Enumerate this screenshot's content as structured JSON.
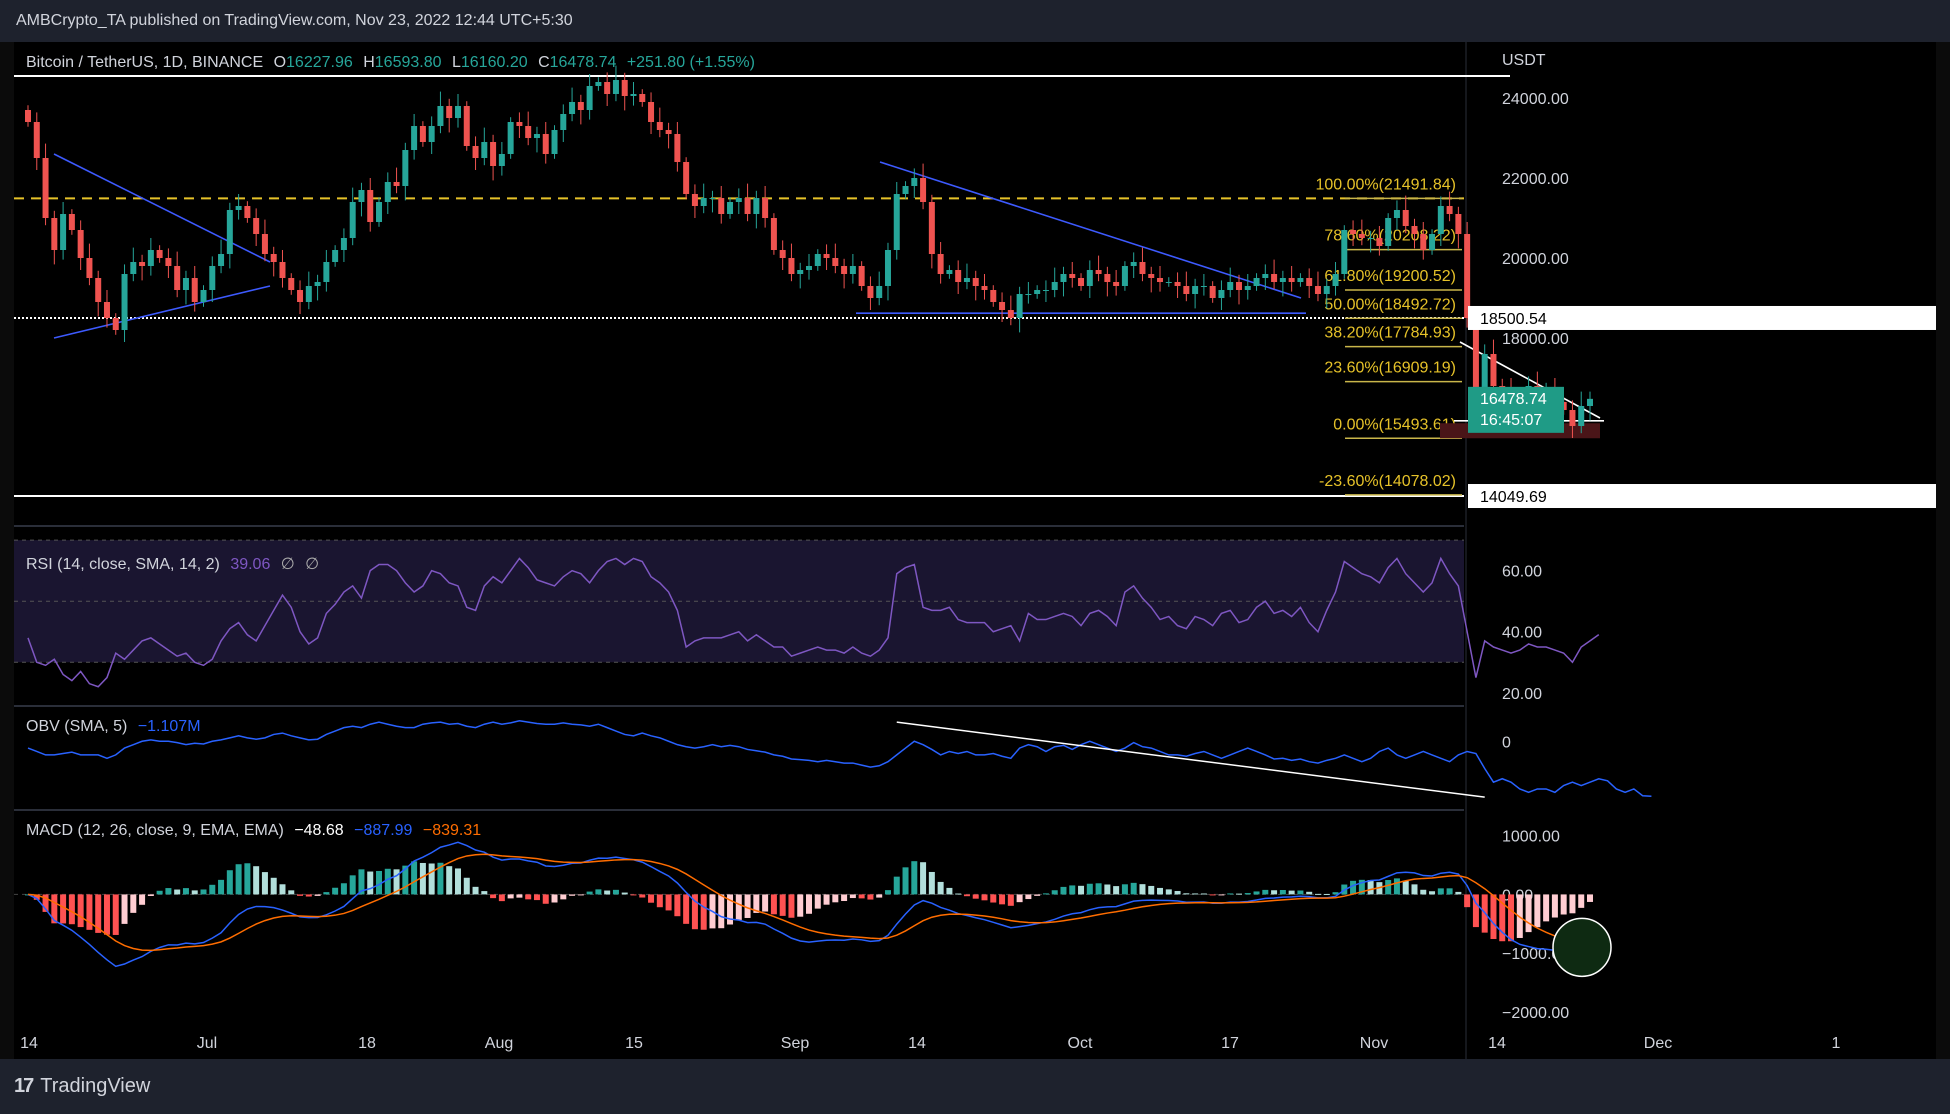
{
  "publisher": "AMBCrypto_TA published on TradingView.com, Nov 23, 2022 12:44 UTC+5:30",
  "brand": "TradingView",
  "colors": {
    "up": "#26a69a",
    "down": "#ef5350",
    "fib": "#c9b64a",
    "white": "#ffffff",
    "blue": "#3d5afe",
    "orange": "#ff6d00",
    "rsi": "#7e57c2",
    "obv": "#2962ff"
  },
  "main_legend": {
    "symbol": "Bitcoin / TetherUS, 1D, BINANCE",
    "o_label": "O",
    "o": "16227.96",
    "h_label": "H",
    "h": "16593.80",
    "l_label": "L",
    "l": "16160.20",
    "c_label": "C",
    "c": "16478.74",
    "change": "+251.80 (+1.55%)"
  },
  "price_axis": {
    "currency": "USDT",
    "ticks": [
      "24000.00",
      "22000.00",
      "20000.00",
      "18000.00"
    ],
    "badge_last": "16478.74",
    "badge_countdown": "16:45:07",
    "badge_18500": "18500.54",
    "badge_14049": "14049.69"
  },
  "rsi_legend": {
    "label": "RSI (14, close, SMA, 14, 2)",
    "value": "39.06",
    "extra1": "∅",
    "extra2": "∅",
    "ticks": [
      "60.00",
      "40.00",
      "20.00"
    ]
  },
  "obv_legend": {
    "label": "OBV (SMA, 5)",
    "value": "−1.107M",
    "ticks": [
      "0"
    ]
  },
  "macd_legend": {
    "label": "MACD (12, 26, close, 9, EMA, EMA)",
    "hist": "−48.68",
    "macd": "−887.99",
    "signal": "−839.31",
    "ticks": [
      "1000.00",
      "0.00",
      "−1000.00",
      "−2000.00"
    ]
  },
  "x_axis": [
    "14",
    "Jul",
    "18",
    "Aug",
    "15",
    "Sep",
    "14",
    "Oct",
    "17",
    "Nov",
    "14",
    "Dec",
    "1"
  ],
  "chart_data": [
    {
      "type": "candlestick",
      "title": "Bitcoin / TetherUS, 1D, BINANCE",
      "ylim": [
        13400,
        25400
      ],
      "last_close": 16478.74,
      "horizontal_levels": [
        24550,
        18500.54,
        14049.69
      ],
      "fib_levels": [
        {
          "label": "100.00%(21491.84)",
          "value": 21491.84
        },
        {
          "label": "78.60%(20208.22)",
          "value": 20208.22
        },
        {
          "label": "61.80%(19200.52)",
          "value": 19200.52
        },
        {
          "label": "50.00%(18492.72)",
          "value": 18492.72
        },
        {
          "label": "38.20%(17784.93)",
          "value": 17784.93
        },
        {
          "label": "23.60%(16909.19)",
          "value": 16909.19
        },
        {
          "label": "0.00%(15493.61)",
          "value": 15493.61
        },
        {
          "label": "-23.60%(14078.02)",
          "value": 14078.02
        }
      ],
      "closes": [
        23400,
        22500,
        21000,
        20200,
        21100,
        20700,
        20000,
        19500,
        18900,
        18500,
        18200,
        19600,
        19900,
        19800,
        20200,
        20000,
        19800,
        19200,
        19500,
        18900,
        19200,
        19800,
        20100,
        21200,
        21300,
        21000,
        20600,
        20100,
        19900,
        19500,
        19200,
        18900,
        19300,
        19400,
        19900,
        20200,
        20500,
        21400,
        21700,
        20900,
        21400,
        21900,
        21800,
        22700,
        23300,
        22900,
        23300,
        23800,
        23500,
        23800,
        22800,
        22500,
        22900,
        22300,
        22600,
        23400,
        23300,
        23000,
        23100,
        22600,
        23200,
        23600,
        23900,
        23700,
        24300,
        24400,
        24100,
        24450,
        24050,
        24100,
        23900,
        23400,
        23200,
        23100,
        22400,
        21600,
        21300,
        21500,
        21500,
        21100,
        21400,
        21500,
        21100,
        21500,
        21000,
        20200,
        20000,
        19600,
        19700,
        19800,
        20100,
        20000,
        19800,
        19600,
        19800,
        19300,
        19000,
        19300,
        20200,
        21600,
        21800,
        22000,
        21400,
        20100,
        19600,
        19700,
        19400,
        19500,
        19300,
        19200,
        18900,
        18700,
        18500,
        19100,
        19100,
        19200,
        19200,
        19400,
        19600,
        19500,
        19300,
        19700,
        19600,
        19400,
        19300,
        19800,
        19900,
        19600,
        19500,
        19400,
        19400,
        19300,
        19100,
        19300,
        19300,
        19000,
        19200,
        19400,
        19200,
        19300,
        19500,
        19600,
        19400,
        19500,
        19400,
        19500,
        19300,
        19100,
        19300,
        19600,
        20700,
        20600,
        20500,
        20500,
        20300,
        21000,
        21200,
        20800,
        20600,
        20200,
        20600,
        21300,
        21100,
        20600,
        18500,
        16700,
        17600,
        16800,
        16700,
        16500,
        16600,
        16800,
        16600,
        16700,
        16400,
        16200,
        15800,
        16300,
        16478.74
      ]
    },
    {
      "type": "line",
      "title": "RSI (14, close, SMA, 14, 2)",
      "ylim": [
        17,
        72
      ],
      "levels": [
        70,
        50,
        30
      ],
      "values": [
        38,
        30,
        29,
        31,
        26,
        24,
        27,
        23,
        22,
        25,
        33,
        31,
        34,
        37,
        38,
        36,
        34,
        32,
        33,
        30,
        29,
        31,
        37,
        41,
        43,
        39,
        37,
        42,
        47,
        52,
        48,
        40,
        36,
        38,
        46,
        49,
        53,
        55,
        51,
        60,
        62,
        62,
        60,
        56,
        53,
        55,
        60,
        59,
        56,
        55,
        48,
        47,
        55,
        58,
        56,
        60,
        64,
        61,
        57,
        56,
        55,
        58,
        60,
        59,
        56,
        60,
        63,
        64,
        62,
        64,
        63,
        58,
        56,
        53,
        47,
        35,
        37,
        38,
        38,
        38,
        39,
        40,
        37,
        39,
        37,
        35,
        35,
        32,
        33,
        34,
        35,
        34,
        34,
        33,
        35,
        33,
        32,
        34,
        38,
        59,
        61,
        62,
        48,
        47,
        47,
        48,
        44,
        43,
        43,
        43,
        40,
        41,
        42,
        37,
        46,
        44,
        44,
        45,
        46,
        45,
        42,
        46,
        47,
        45,
        42,
        53,
        55,
        51,
        48,
        44,
        45,
        42,
        41,
        45,
        44,
        42,
        46,
        47,
        43,
        44,
        48,
        50,
        46,
        47,
        45,
        48,
        43,
        40,
        47,
        53,
        63,
        61,
        59,
        58,
        56,
        61,
        64,
        59,
        56,
        53,
        56,
        64,
        59,
        55,
        40,
        25,
        37,
        35,
        34,
        33,
        34,
        36,
        35,
        35,
        34,
        33,
        30,
        35,
        37,
        39.06
      ]
    },
    {
      "type": "line",
      "title": "OBV (SMA, 5)",
      "values": [
        -0.4,
        -0.45,
        -0.5,
        -0.5,
        -0.48,
        -0.46,
        -0.5,
        -0.5,
        -0.5,
        -0.55,
        -0.5,
        -0.4,
        -0.35,
        -0.3,
        -0.28,
        -0.3,
        -0.3,
        -0.32,
        -0.35,
        -0.33,
        -0.34,
        -0.3,
        -0.28,
        -0.25,
        -0.22,
        -0.25,
        -0.27,
        -0.25,
        -0.2,
        -0.18,
        -0.22,
        -0.25,
        -0.28,
        -0.27,
        -0.2,
        -0.15,
        -0.1,
        -0.08,
        -0.1,
        -0.05,
        -0.02,
        -0.05,
        -0.08,
        -0.1,
        -0.1,
        -0.05,
        -0.03,
        -0.02,
        -0.05,
        -0.04,
        -0.08,
        -0.1,
        -0.05,
        -0.02,
        -0.05,
        -0.03,
        0.0,
        -0.02,
        -0.04,
        -0.05,
        -0.05,
        -0.03,
        -0.05,
        -0.06,
        -0.08,
        -0.05,
        -0.1,
        -0.15,
        -0.2,
        -0.22,
        -0.18,
        -0.22,
        -0.25,
        -0.3,
        -0.35,
        -0.38,
        -0.4,
        -0.38,
        -0.35,
        -0.38,
        -0.36,
        -0.38,
        -0.42,
        -0.44,
        -0.46,
        -0.5,
        -0.52,
        -0.56,
        -0.57,
        -0.58,
        -0.6,
        -0.58,
        -0.6,
        -0.62,
        -0.62,
        -0.65,
        -0.68,
        -0.66,
        -0.6,
        -0.5,
        -0.4,
        -0.3,
        -0.35,
        -0.42,
        -0.5,
        -0.45,
        -0.48,
        -0.45,
        -0.5,
        -0.5,
        -0.48,
        -0.52,
        -0.55,
        -0.4,
        -0.35,
        -0.38,
        -0.45,
        -0.38,
        -0.36,
        -0.42,
        -0.35,
        -0.3,
        -0.35,
        -0.4,
        -0.45,
        -0.4,
        -0.32,
        -0.38,
        -0.4,
        -0.45,
        -0.5,
        -0.5,
        -0.52,
        -0.48,
        -0.45,
        -0.5,
        -0.55,
        -0.5,
        -0.45,
        -0.4,
        -0.45,
        -0.5,
        -0.56,
        -0.55,
        -0.58,
        -0.56,
        -0.6,
        -0.62,
        -0.58,
        -0.55,
        -0.5,
        -0.55,
        -0.6,
        -0.55,
        -0.45,
        -0.4,
        -0.5,
        -0.55,
        -0.5,
        -0.45,
        -0.5,
        -0.55,
        -0.6,
        -0.5,
        -0.45,
        -0.48,
        -0.7,
        -0.9,
        -0.85,
        -0.9,
        -1.0,
        -1.05,
        -1.0,
        -1.0,
        -1.05,
        -0.95,
        -0.9,
        -0.95,
        -0.9,
        -0.85,
        -0.88,
        -1.0,
        -1.05,
        -1.0,
        -1.1,
        -1.107
      ]
    },
    {
      "type": "bar+line",
      "title": "MACD (12, 26, close, 9, EMA, EMA)",
      "ylim": [
        -2800,
        1300
      ],
      "note": "values shown as histogram, MACD and signal lines",
      "last": {
        "histogram": -48.68,
        "macd": -887.99,
        "signal": -839.31
      }
    }
  ]
}
